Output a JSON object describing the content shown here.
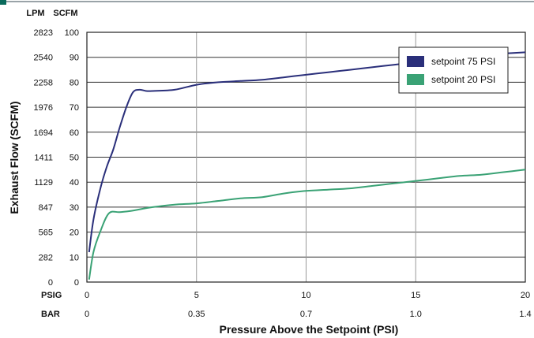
{
  "chart_data": {
    "type": "line",
    "xlabel": "Pressure Above the Setpoint (PSI)",
    "ylabel": "Exhaust Flow (SCFM)",
    "x_axis_rows": [
      {
        "label": "PSIG",
        "ticks": [
          "0",
          "5",
          "10",
          "15",
          "20"
        ]
      },
      {
        "label": "BAR",
        "ticks": [
          "0",
          "0.35",
          "0.7",
          "1.0",
          "1.4"
        ]
      }
    ],
    "y_axis_columns": [
      {
        "label": "LPM",
        "ticks": [
          "0",
          "282",
          "565",
          "847",
          "1129",
          "1411",
          "1694",
          "1976",
          "2258",
          "2540",
          "2823"
        ]
      },
      {
        "label": "SCFM",
        "ticks": [
          "0",
          "10",
          "20",
          "30",
          "40",
          "50",
          "60",
          "70",
          "80",
          "90",
          "100"
        ]
      }
    ],
    "xlim": [
      0,
      20
    ],
    "ylim": [
      0,
      100
    ],
    "grid": true,
    "legend_position": "top-right",
    "series": [
      {
        "name": "setpoint 75 PSI",
        "color": "#2a2f7a",
        "x": [
          0.1,
          0.3,
          0.6,
          0.9,
          1.2,
          1.5,
          1.8,
          2.1,
          2.4,
          2.7,
          3.0,
          4.0,
          5.0,
          6.0,
          7.0,
          8.0,
          9.0,
          10.0,
          11.0,
          12.0,
          13.0,
          14.0,
          15.0,
          16.0,
          17.0,
          18.0,
          19.0,
          20.0
        ],
        "y": [
          12,
          25,
          37,
          46,
          53,
          62,
          70,
          76,
          77,
          76.5,
          76.5,
          77,
          79,
          80,
          80.5,
          81,
          82,
          83,
          84,
          85,
          86,
          87,
          88,
          89,
          90,
          91,
          91.5,
          92
        ]
      },
      {
        "name": "setpoint 20 PSI",
        "color": "#3aa275",
        "x": [
          0.1,
          0.3,
          0.6,
          1.0,
          1.5,
          2.0,
          3.0,
          4.0,
          5.0,
          6.0,
          7.0,
          8.0,
          9.0,
          10.0,
          11.0,
          12.0,
          13.0,
          14.0,
          15.0,
          16.0,
          17.0,
          18.0,
          19.0,
          20.0
        ],
        "y": [
          1,
          12,
          20,
          27.5,
          28,
          28.5,
          30,
          31,
          31.5,
          32.5,
          33.5,
          34,
          35.5,
          36.5,
          37,
          37.5,
          38.5,
          39.5,
          40.5,
          41.5,
          42.5,
          43,
          44,
          45
        ]
      }
    ]
  }
}
